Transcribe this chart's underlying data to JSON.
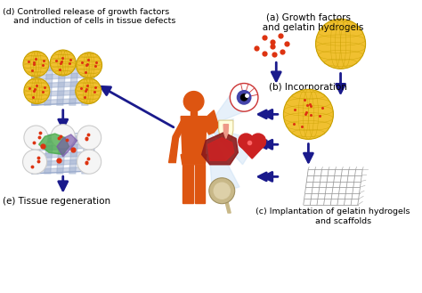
{
  "bg_color": "#ffffff",
  "fig_width": 4.74,
  "fig_height": 3.29,
  "dpi": 100,
  "labels": {
    "a": "(a) Growth factors\n   and gelatin hydrogels",
    "b": "(b) Incorporation",
    "c": "(c) Implantation of gelatin hydrogels\n        and scaffolds",
    "d": "(d) Controlled release of growth factors\n    and induction of cells in tissue defects",
    "e": "(e) Tissue regeneration"
  },
  "arrow_color": "#1a1a8c",
  "dot_color": "#dd3311",
  "hydrogel_color": "#f0c030",
  "hydrogel_ec": "#c8a000",
  "scaffold_color": "#8899bb",
  "body_color": "#dd5511",
  "beam_color": "#d4e8f8",
  "grid_color": "#99aacc"
}
